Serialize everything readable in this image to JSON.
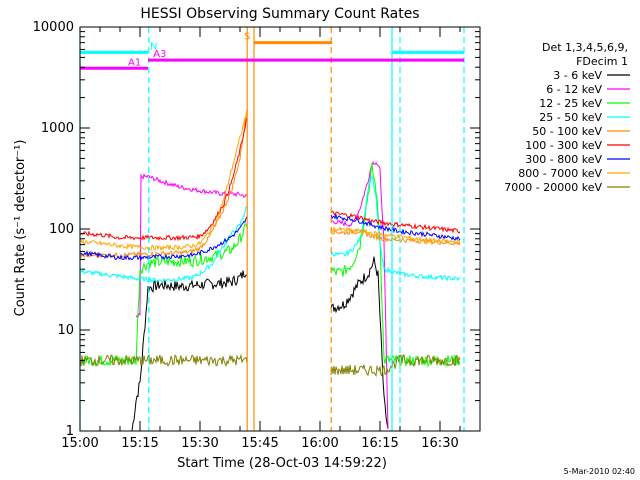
{
  "chart_data": {
    "type": "line",
    "title": "HESSI Observing Summary Count Rates",
    "xlabel": "Start Time (28-Oct-03 14:59:22)",
    "ylabel": "Count Rate (s⁻¹ detector⁻¹)",
    "ylog": true,
    "ylim": [
      1,
      10000
    ],
    "xlim": [
      0,
      100
    ],
    "ymajor": [
      1,
      10,
      100,
      1000,
      10000
    ],
    "ymajor_labels": [
      "1",
      "10",
      "100",
      "1000",
      "10000"
    ],
    "xticks": [
      {
        "t": 0,
        "label": "15:00"
      },
      {
        "t": 15,
        "label": "15:15"
      },
      {
        "t": 30,
        "label": "15:30"
      },
      {
        "t": 45,
        "label": "15:45"
      },
      {
        "t": 60,
        "label": "16:00"
      },
      {
        "t": 75,
        "label": "16:15"
      },
      {
        "t": 90,
        "label": "16:30"
      }
    ],
    "legend_header": [
      "Det 1,3,4,5,6,9,",
      "FDecim 1"
    ],
    "legend_position": "right",
    "gaps": [
      [
        42,
        62
      ]
    ],
    "series": [
      {
        "name": "3 - 6 keV",
        "color": "#000000",
        "points": [
          [
            13,
            1
          ],
          [
            14,
            2
          ],
          [
            15,
            3
          ],
          [
            17,
            26
          ],
          [
            20,
            28
          ],
          [
            25,
            27
          ],
          [
            30,
            28
          ],
          [
            35,
            29
          ],
          [
            38,
            30
          ],
          [
            40,
            33
          ],
          [
            41.8,
            40
          ],
          [
            62.5,
            16
          ],
          [
            64,
            17
          ],
          [
            66,
            18
          ],
          [
            68,
            23
          ],
          [
            70,
            30
          ],
          [
            72,
            36
          ],
          [
            73.5,
            48
          ],
          [
            74.5,
            35
          ],
          [
            76,
            2
          ],
          [
            77,
            1
          ]
        ]
      },
      {
        "name": "6 - 12 keV",
        "color": "#ff00ff",
        "points": [
          [
            14,
            13
          ],
          [
            15,
            14
          ],
          [
            15.2,
            330
          ],
          [
            17,
            330
          ],
          [
            20,
            300
          ],
          [
            25,
            260
          ],
          [
            30,
            240
          ],
          [
            35,
            225
          ],
          [
            40,
            220
          ],
          [
            41.8,
            210
          ],
          [
            62.5,
            120
          ],
          [
            65,
            115
          ],
          [
            68,
            110
          ],
          [
            70,
            160
          ],
          [
            72,
            300
          ],
          [
            73,
            450
          ],
          [
            74,
            460
          ],
          [
            75,
            380
          ],
          [
            76,
            70
          ],
          [
            77,
            1
          ]
        ]
      },
      {
        "name": "12 - 25 keV",
        "color": "#00ff00",
        "points": [
          [
            0,
            5
          ],
          [
            5,
            5
          ],
          [
            10,
            5
          ],
          [
            14,
            5
          ],
          [
            15,
            40
          ],
          [
            17,
            46
          ],
          [
            20,
            47
          ],
          [
            25,
            48
          ],
          [
            28,
            48
          ],
          [
            30,
            50
          ],
          [
            33,
            53
          ],
          [
            36,
            58
          ],
          [
            38,
            63
          ],
          [
            40,
            80
          ],
          [
            41.8,
            110
          ],
          [
            62.5,
            40
          ],
          [
            64,
            37
          ],
          [
            66,
            38
          ],
          [
            68,
            45
          ],
          [
            70,
            70
          ],
          [
            72,
            220
          ],
          [
            73,
            400
          ],
          [
            74,
            250
          ],
          [
            75,
            80
          ],
          [
            76,
            5
          ],
          [
            80,
            5
          ],
          [
            85,
            5
          ],
          [
            90,
            5
          ],
          [
            95,
            5
          ]
        ]
      },
      {
        "name": "25 - 50 keV",
        "color": "#00ffff",
        "points": [
          [
            0,
            38
          ],
          [
            5,
            36
          ],
          [
            10,
            34
          ],
          [
            15,
            32
          ],
          [
            20,
            31
          ],
          [
            25,
            32
          ],
          [
            28,
            33
          ],
          [
            30,
            36
          ],
          [
            33,
            45
          ],
          [
            35,
            60
          ],
          [
            38,
            90
          ],
          [
            40,
            110
          ],
          [
            41.8,
            170
          ],
          [
            62.5,
            58
          ],
          [
            64,
            56
          ],
          [
            66,
            55
          ],
          [
            68,
            62
          ],
          [
            70,
            80
          ],
          [
            71,
            130
          ],
          [
            72,
            250
          ],
          [
            73,
            340
          ],
          [
            74,
            200
          ],
          [
            75,
            70
          ],
          [
            76,
            40
          ],
          [
            80,
            36
          ],
          [
            85,
            34
          ],
          [
            90,
            33
          ],
          [
            95,
            32
          ]
        ]
      },
      {
        "name": "50 - 100 keV",
        "color": "#ff8c00",
        "points": [
          [
            0,
            55
          ],
          [
            5,
            55
          ],
          [
            10,
            55
          ],
          [
            15,
            56
          ],
          [
            20,
            57
          ],
          [
            25,
            58
          ],
          [
            28,
            60
          ],
          [
            30,
            65
          ],
          [
            32,
            80
          ],
          [
            34,
            110
          ],
          [
            36,
            160
          ],
          [
            38,
            250
          ],
          [
            40,
            500
          ],
          [
            41.8,
            1600
          ],
          [
            62.5,
            95
          ],
          [
            66,
            92
          ],
          [
            70,
            95
          ],
          [
            73,
            85
          ],
          [
            76,
            80
          ],
          [
            80,
            78
          ],
          [
            85,
            76
          ],
          [
            90,
            74
          ],
          [
            95,
            72
          ]
        ]
      },
      {
        "name": "100 - 300 keV",
        "color": "#ff0000",
        "points": [
          [
            0,
            90
          ],
          [
            5,
            88
          ],
          [
            10,
            82
          ],
          [
            15,
            82
          ],
          [
            20,
            82
          ],
          [
            25,
            82
          ],
          [
            28,
            83
          ],
          [
            30,
            85
          ],
          [
            32,
            100
          ],
          [
            34,
            130
          ],
          [
            36,
            180
          ],
          [
            38,
            300
          ],
          [
            40,
            600
          ],
          [
            41.8,
            1300
          ],
          [
            62.5,
            145
          ],
          [
            65,
            140
          ],
          [
            68,
            135
          ],
          [
            70,
            130
          ],
          [
            73,
            120
          ],
          [
            76,
            115
          ],
          [
            80,
            110
          ],
          [
            85,
            105
          ],
          [
            90,
            100
          ],
          [
            95,
            95
          ]
        ]
      },
      {
        "name": "300 - 800 keV",
        "color": "#0000ff",
        "points": [
          [
            0,
            58
          ],
          [
            5,
            55
          ],
          [
            10,
            52
          ],
          [
            15,
            52
          ],
          [
            20,
            53
          ],
          [
            25,
            54
          ],
          [
            28,
            55
          ],
          [
            30,
            58
          ],
          [
            32,
            62
          ],
          [
            34,
            68
          ],
          [
            36,
            75
          ],
          [
            38,
            85
          ],
          [
            40,
            100
          ],
          [
            41.8,
            130
          ],
          [
            62.5,
            135
          ],
          [
            65,
            130
          ],
          [
            68,
            125
          ],
          [
            70,
            120
          ],
          [
            73,
            110
          ],
          [
            76,
            102
          ],
          [
            80,
            95
          ],
          [
            85,
            90
          ],
          [
            90,
            85
          ],
          [
            95,
            80
          ]
        ]
      },
      {
        "name": "800 - 7000 keV",
        "color": "#ffa500",
        "points": [
          [
            0,
            75
          ],
          [
            5,
            72
          ],
          [
            10,
            68
          ],
          [
            15,
            66
          ],
          [
            20,
            65
          ],
          [
            25,
            66
          ],
          [
            28,
            68
          ],
          [
            30,
            72
          ],
          [
            32,
            90
          ],
          [
            34,
            120
          ],
          [
            36,
            200
          ],
          [
            38,
            400
          ],
          [
            40,
            800
          ],
          [
            41.8,
            1500
          ],
          [
            62.5,
            100
          ],
          [
            66,
            98
          ],
          [
            70,
            95
          ],
          [
            74,
            90
          ],
          [
            78,
            86
          ],
          [
            82,
            82
          ],
          [
            86,
            78
          ],
          [
            90,
            76
          ],
          [
            95,
            74
          ]
        ]
      },
      {
        "name": "7000 - 20000 keV",
        "color": "#808000",
        "points": [
          [
            0,
            5
          ],
          [
            5,
            5
          ],
          [
            10,
            5
          ],
          [
            14,
            5
          ],
          [
            17,
            5
          ],
          [
            20,
            5
          ],
          [
            25,
            5
          ],
          [
            30,
            5
          ],
          [
            35,
            5
          ],
          [
            38,
            5
          ],
          [
            41.8,
            5
          ],
          [
            62.5,
            4
          ],
          [
            66,
            4
          ],
          [
            70,
            4
          ],
          [
            74,
            4
          ],
          [
            76,
            4
          ],
          [
            80,
            5
          ],
          [
            85,
            5
          ],
          [
            90,
            5
          ],
          [
            95,
            5
          ]
        ]
      }
    ],
    "state_bars": [
      {
        "label": "N",
        "color": "#00ffff",
        "value": 5600,
        "segments": [
          [
            0,
            17
          ],
          [
            78,
            96
          ]
        ],
        "label_at": 17.5
      },
      {
        "label": "A1",
        "color": "#ff00ff",
        "value": 3900,
        "segments": [
          [
            0,
            17
          ]
        ],
        "label_at": 12
      },
      {
        "label": "A3",
        "color": "#ff00ff",
        "value": 4700,
        "segments": [
          [
            17,
            96
          ]
        ],
        "label_at": 18.3
      },
      {
        "label": "S",
        "color": "#ff8c00",
        "value": 7000,
        "segments": [
          [
            43.5,
            63
          ]
        ],
        "label_at": 41
      }
    ],
    "vlines": [
      {
        "t": 0,
        "color": "#00ffff",
        "dashed": false
      },
      {
        "t": 17.2,
        "color": "#00ffff",
        "dashed": true
      },
      {
        "t": 41.8,
        "color": "#ff8c00",
        "dashed": false
      },
      {
        "t": 43.5,
        "color": "#ff8c00",
        "dashed": false
      },
      {
        "t": 62.8,
        "color": "#ff8c00",
        "dashed": true
      },
      {
        "t": 78,
        "color": "#00ffff",
        "dashed": false
      },
      {
        "t": 80,
        "color": "#00ffff",
        "dashed": true
      },
      {
        "t": 96,
        "color": "#00ffff",
        "dashed": true
      }
    ],
    "timestamp": "5-Mar-2010 02:40"
  }
}
